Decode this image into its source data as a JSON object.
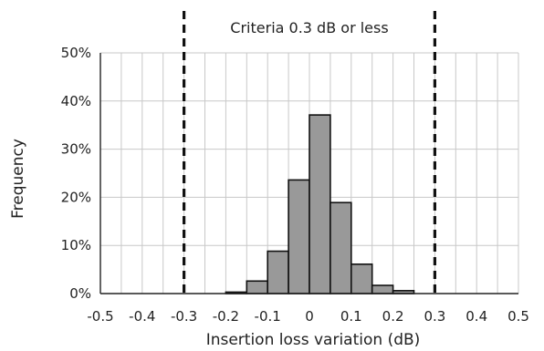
{
  "chart_data": {
    "type": "bar",
    "title": "",
    "xlabel": "Insertion loss variation (dB)",
    "ylabel": "Frequency",
    "xlim": [
      -0.5,
      0.5
    ],
    "ylim": [
      0,
      50
    ],
    "grid": true,
    "x_ticks": [
      "-0.5",
      "-0.4",
      "-0.3",
      "-0.2",
      "-0.1",
      "0",
      "0.1",
      "0.2",
      "0.3",
      "0.4",
      "0.5"
    ],
    "y_ticks": [
      "0%",
      "10%",
      "20%",
      "30%",
      "40%",
      "50%"
    ],
    "bin_width": 0.05,
    "bins": [
      {
        "x": -0.2,
        "value": 0.3
      },
      {
        "x": -0.15,
        "value": 2.6
      },
      {
        "x": -0.1,
        "value": 8.8
      },
      {
        "x": -0.05,
        "value": 23.6
      },
      {
        "x": 0.0,
        "value": 37.1
      },
      {
        "x": 0.05,
        "value": 18.9
      },
      {
        "x": 0.1,
        "value": 6.1
      },
      {
        "x": 0.15,
        "value": 1.7
      },
      {
        "x": 0.2,
        "value": 0.6
      }
    ],
    "thresholds": [
      -0.3,
      0.3
    ],
    "annotation": "Criteria 0.3 dB or less",
    "bar_color": "#999999",
    "bar_edge_color": "#111111"
  }
}
